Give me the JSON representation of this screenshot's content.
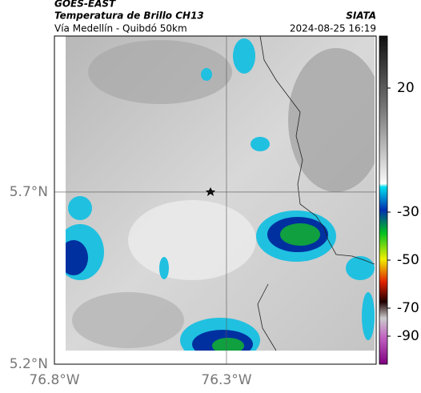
{
  "header": {
    "source": "GOES-EAST",
    "title": "Temperatura de Brillo CH13",
    "region": "Vía Medellín - Quibdó 50km",
    "agency": "SIATA",
    "timestamp": "2024-08-25 16:19"
  },
  "map": {
    "extent": {
      "lon": [
        -76.8,
        -75.865
      ],
      "lat": [
        5.2,
        6.153
      ]
    },
    "lat_ticks": [
      {
        "value": 5.7,
        "label": "5.7°N"
      },
      {
        "value": 5.2,
        "label": "5.2°N"
      }
    ],
    "lon_ticks": [
      {
        "value": -76.8,
        "label": "76.8°W"
      },
      {
        "value": -76.3,
        "label": "76.3°W"
      }
    ]
  },
  "colorbar": {
    "ticks": [
      20,
      -30,
      -50,
      -70,
      -90
    ]
  }
}
